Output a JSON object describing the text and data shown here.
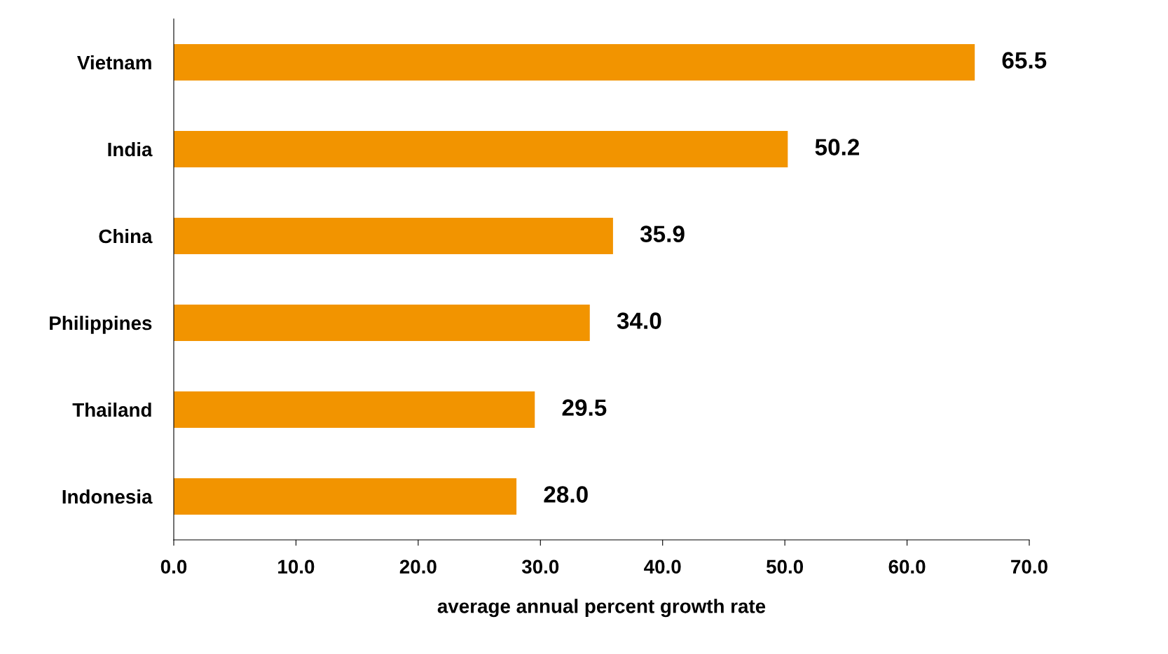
{
  "chart_data": {
    "type": "bar",
    "orientation": "horizontal",
    "xlabel": "average annual percent growth rate",
    "categories": [
      "Vietnam",
      "India",
      "China",
      "Philippines",
      "Thailand",
      "Indonesia"
    ],
    "values": [
      65.5,
      50.2,
      35.9,
      34.0,
      29.5,
      28.0
    ],
    "value_labels": [
      "65.5",
      "50.2",
      "35.9",
      "34.0",
      "29.5",
      "28.0"
    ],
    "color": "#f29400",
    "xlim": [
      0,
      70
    ],
    "xticks": [
      {
        "value": 0,
        "label": "0.0"
      },
      {
        "value": 10,
        "label": "10.0"
      },
      {
        "value": 20,
        "label": "20.0"
      },
      {
        "value": 30,
        "label": "30.0"
      },
      {
        "value": 40,
        "label": "40.0"
      },
      {
        "value": 50,
        "label": "50.0"
      },
      {
        "value": 60,
        "label": "60.0"
      },
      {
        "value": 70,
        "label": "70.0"
      }
    ],
    "grid": false,
    "legend": false
  }
}
